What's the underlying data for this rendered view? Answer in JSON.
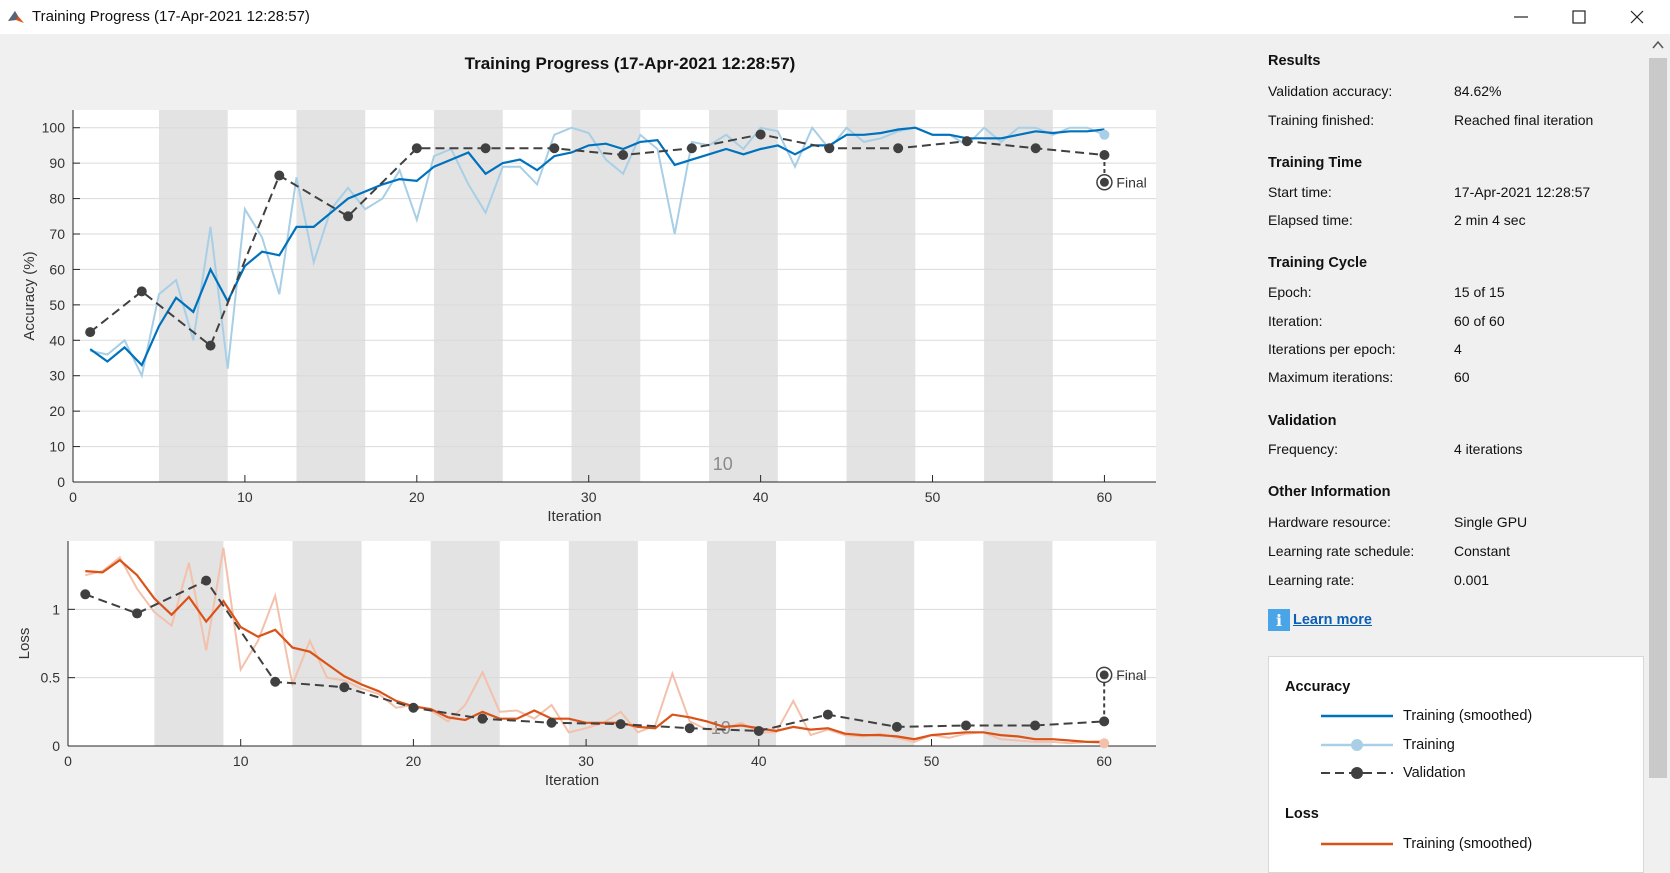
{
  "window": {
    "title": "Training Progress (17-Apr-2021 12:28:57)"
  },
  "plot_title": "Training Progress (17-Apr-2021 12:28:57)",
  "results": {
    "heading": "Results",
    "rows": [
      {
        "label": "Validation accuracy:",
        "value": "84.62%"
      },
      {
        "label": "Training finished:",
        "value": "Reached final iteration"
      }
    ]
  },
  "training_time": {
    "heading": "Training Time",
    "rows": [
      {
        "label": "Start time:",
        "value": "17-Apr-2021 12:28:57"
      },
      {
        "label": "Elapsed time:",
        "value": "2 min 4 sec"
      }
    ]
  },
  "training_cycle": {
    "heading": "Training Cycle",
    "rows": [
      {
        "label": "Epoch:",
        "value": "15 of 15"
      },
      {
        "label": "Iteration:",
        "value": "60 of 60"
      },
      {
        "label": "Iterations per epoch:",
        "value": "4"
      },
      {
        "label": "Maximum iterations:",
        "value": "60"
      }
    ]
  },
  "validation": {
    "heading": "Validation",
    "rows": [
      {
        "label": "Frequency:",
        "value": "4 iterations"
      }
    ]
  },
  "other_info": {
    "heading": "Other Information",
    "rows": [
      {
        "label": "Hardware resource:",
        "value": "Single GPU"
      },
      {
        "label": "Learning rate schedule:",
        "value": "Constant"
      },
      {
        "label": "Learning rate:",
        "value": "0.001"
      }
    ]
  },
  "learn_more": "Learn more",
  "legend": {
    "accuracy_heading": "Accuracy",
    "loss_heading": "Loss",
    "training_smoothed": "Training (smoothed)",
    "training": "Training",
    "validation": "Validation",
    "colors": {
      "acc_smoothed": "#0072bd",
      "acc_raw": "#a8cfe6",
      "loss_smoothed": "#d95319",
      "loss_raw": "#f3c1ab",
      "validation": "#404040"
    }
  },
  "chart_data": [
    {
      "type": "line",
      "ylabel": "Accuracy (%)",
      "xlabel": "Iteration",
      "xlim": [
        0,
        63
      ],
      "ylim": [
        0,
        105
      ],
      "xticks": [
        0,
        10,
        20,
        30,
        40,
        50,
        60
      ],
      "yticks": [
        0,
        10,
        20,
        30,
        40,
        50,
        60,
        70,
        80,
        90,
        100
      ],
      "epoch_shading": [
        [
          5,
          9
        ],
        [
          13,
          17
        ],
        [
          21,
          25
        ],
        [
          29,
          33
        ],
        [
          37,
          41
        ],
        [
          45,
          49
        ],
        [
          53,
          57
        ]
      ],
      "epoch_label": "10",
      "final_label": "Final",
      "series": [
        {
          "name": "Training (smoothed)",
          "x": [
            1,
            2,
            3,
            4,
            5,
            6,
            7,
            8,
            9,
            10,
            11,
            12,
            13,
            14,
            15,
            16,
            17,
            18,
            19,
            20,
            21,
            22,
            23,
            24,
            25,
            26,
            27,
            28,
            29,
            30,
            31,
            32,
            33,
            34,
            35,
            36,
            37,
            38,
            39,
            40,
            41,
            42,
            43,
            44,
            45,
            46,
            47,
            48,
            49,
            50,
            51,
            52,
            53,
            54,
            55,
            56,
            57,
            58,
            59,
            60
          ],
          "y": [
            37.5,
            34,
            38,
            33,
            44,
            52,
            48,
            60,
            51,
            61,
            65,
            64,
            72,
            72,
            76,
            80,
            82,
            84,
            85.5,
            85,
            89,
            91,
            93,
            87,
            90,
            91,
            88,
            92,
            93,
            95,
            95.5,
            94,
            96,
            96.5,
            89.5,
            91,
            92.5,
            94,
            92.5,
            94,
            95,
            92.5,
            95,
            95,
            98,
            98,
            98.5,
            99.5,
            100,
            98,
            98,
            97,
            97,
            97,
            98,
            99,
            98.5,
            99,
            99,
            99.5
          ]
        },
        {
          "name": "Training",
          "x": [
            1,
            2,
            3,
            4,
            5,
            6,
            7,
            8,
            9,
            10,
            11,
            12,
            13,
            14,
            15,
            16,
            17,
            18,
            19,
            20,
            21,
            22,
            23,
            24,
            25,
            26,
            27,
            28,
            29,
            30,
            31,
            32,
            33,
            34,
            35,
            36,
            37,
            38,
            39,
            40,
            41,
            42,
            43,
            44,
            45,
            46,
            47,
            48,
            49,
            50,
            51,
            52,
            53,
            54,
            55,
            56,
            57,
            58,
            59,
            60
          ],
          "y": [
            37,
            36,
            40,
            30,
            53,
            57,
            40,
            72,
            32,
            77,
            69,
            53,
            86,
            62,
            77,
            83,
            77,
            80,
            88,
            74,
            92,
            94,
            84,
            76,
            89,
            89,
            84,
            98,
            100,
            98.5,
            91,
            87,
            98,
            94,
            70,
            96,
            95,
            98,
            94,
            100,
            99,
            89,
            100,
            94,
            100,
            96,
            97,
            99,
            100,
            98,
            98,
            95,
            100,
            96,
            100,
            100,
            98,
            100,
            100,
            98
          ]
        },
        {
          "name": "Validation",
          "x": [
            1,
            4,
            8,
            12,
            16,
            20,
            24,
            28,
            32,
            36,
            40,
            44,
            48,
            52,
            56,
            60
          ],
          "y": [
            42.3,
            53.8,
            38.5,
            86.5,
            75,
            94.2,
            94.2,
            94.2,
            92.3,
            94.2,
            98.1,
            94.2,
            94.2,
            96.2,
            94.2,
            92.3
          ]
        }
      ],
      "final_point": {
        "x": 60,
        "y": 84.6
      }
    },
    {
      "type": "line",
      "ylabel": "Loss",
      "xlabel": "Iteration",
      "xlim": [
        0,
        63
      ],
      "ylim": [
        0,
        1.5
      ],
      "xticks": [
        0,
        10,
        20,
        30,
        40,
        50,
        60
      ],
      "yticks": [
        0,
        0.5,
        1
      ],
      "ytick_labels": [
        "0",
        "0.5",
        "1"
      ],
      "epoch_shading": [
        [
          5,
          9
        ],
        [
          13,
          17
        ],
        [
          21,
          25
        ],
        [
          29,
          33
        ],
        [
          37,
          41
        ],
        [
          45,
          49
        ],
        [
          53,
          57
        ]
      ],
      "epoch_label": "10",
      "final_label": "Final",
      "series": [
        {
          "name": "Training (smoothed)",
          "x": [
            1,
            2,
            3,
            4,
            5,
            6,
            7,
            8,
            9,
            10,
            11,
            12,
            13,
            14,
            15,
            16,
            17,
            18,
            19,
            20,
            21,
            22,
            23,
            24,
            25,
            26,
            27,
            28,
            29,
            30,
            31,
            32,
            33,
            34,
            35,
            36,
            37,
            38,
            39,
            40,
            41,
            42,
            43,
            44,
            45,
            46,
            47,
            48,
            49,
            50,
            51,
            52,
            53,
            54,
            55,
            56,
            57,
            58,
            59,
            60
          ],
          "y": [
            1.28,
            1.27,
            1.36,
            1.25,
            1.08,
            0.96,
            1.09,
            0.91,
            1.06,
            0.87,
            0.8,
            0.85,
            0.72,
            0.69,
            0.6,
            0.51,
            0.45,
            0.4,
            0.33,
            0.29,
            0.27,
            0.21,
            0.19,
            0.25,
            0.2,
            0.2,
            0.26,
            0.2,
            0.2,
            0.17,
            0.17,
            0.17,
            0.14,
            0.13,
            0.23,
            0.21,
            0.18,
            0.14,
            0.15,
            0.13,
            0.11,
            0.14,
            0.12,
            0.13,
            0.09,
            0.08,
            0.08,
            0.07,
            0.05,
            0.08,
            0.09,
            0.1,
            0.1,
            0.08,
            0.07,
            0.05,
            0.05,
            0.04,
            0.03,
            0.03
          ]
        },
        {
          "name": "Training",
          "x": [
            1,
            2,
            3,
            4,
            5,
            6,
            7,
            8,
            9,
            10,
            11,
            12,
            13,
            14,
            15,
            16,
            17,
            18,
            19,
            20,
            21,
            22,
            23,
            24,
            25,
            26,
            27,
            28,
            29,
            30,
            31,
            32,
            33,
            34,
            35,
            36,
            37,
            38,
            39,
            40,
            41,
            42,
            43,
            44,
            45,
            46,
            47,
            48,
            49,
            50,
            51,
            52,
            53,
            54,
            55,
            56,
            57,
            58,
            59,
            60
          ],
          "y": [
            1.25,
            1.28,
            1.38,
            1.15,
            0.98,
            0.88,
            1.34,
            0.7,
            1.45,
            0.56,
            0.77,
            1.1,
            0.45,
            0.77,
            0.5,
            0.48,
            0.42,
            0.38,
            0.28,
            0.3,
            0.26,
            0.18,
            0.3,
            0.54,
            0.25,
            0.26,
            0.2,
            0.3,
            0.1,
            0.13,
            0.17,
            0.25,
            0.1,
            0.15,
            0.53,
            0.18,
            0.12,
            0.13,
            0.17,
            0.1,
            0.1,
            0.33,
            0.08,
            0.12,
            0.08,
            0.07,
            0.09,
            0.06,
            0.03,
            0.08,
            0.06,
            0.09,
            0.1,
            0.05,
            0.04,
            0.03,
            0.03,
            0.02,
            0.03,
            0.02
          ]
        },
        {
          "name": "Validation",
          "x": [
            1,
            4,
            8,
            12,
            16,
            20,
            24,
            28,
            32,
            36,
            40,
            44,
            48,
            52,
            56,
            60
          ],
          "y": [
            1.11,
            0.97,
            1.21,
            0.47,
            0.43,
            0.28,
            0.2,
            0.17,
            0.16,
            0.13,
            0.11,
            0.23,
            0.14,
            0.15,
            0.15,
            0.18
          ]
        }
      ],
      "final_point": {
        "x": 60,
        "y": 0.52
      }
    }
  ]
}
